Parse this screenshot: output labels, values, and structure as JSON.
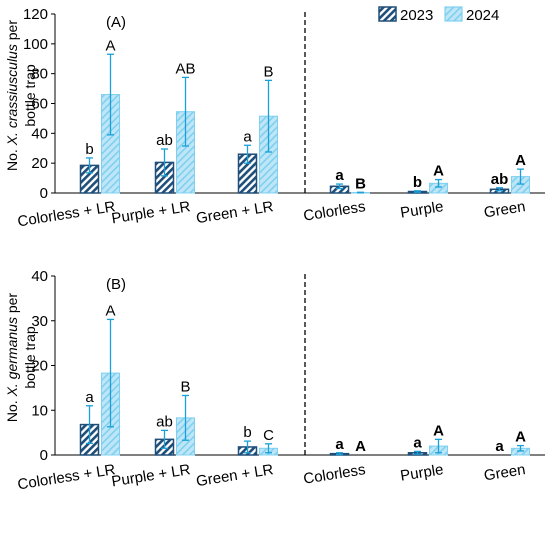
{
  "chart_data": [
    {
      "type": "bar",
      "panel_label": "(A)",
      "ylabel_prefix": "No. ",
      "ylabel_species": "X. crassiusculus",
      "ylabel_suffix": " per",
      "ylabel_line2": "bottle trap",
      "ylim": [
        0,
        120
      ],
      "yticks": [
        "0",
        "20",
        "40",
        "60",
        "80",
        "100",
        "120"
      ],
      "categories": [
        "Colorless + LR",
        "Purple + LR",
        "Green + LR",
        "Colorless",
        "Purple",
        "Green"
      ],
      "series": [
        {
          "name": "2023",
          "values": [
            18.5,
            20.5,
            26,
            4.5,
            1,
            2.5
          ],
          "errors": [
            5,
            9,
            6,
            1.5,
            0.5,
            1
          ]
        },
        {
          "name": "2024",
          "values": [
            66,
            54.5,
            51.5,
            0.3,
            6.5,
            11
          ],
          "errors": [
            27,
            23,
            24,
            0.2,
            2.5,
            5
          ]
        }
      ],
      "letters_2023": [
        "b",
        "ab",
        "a",
        "a",
        "b",
        "ab"
      ],
      "letters_2024": [
        "A",
        "AB",
        "B",
        "B",
        "A",
        "A"
      ],
      "bold_letters_from_index": 3
    },
    {
      "type": "bar",
      "panel_label": "(B)",
      "ylabel_prefix": "No. ",
      "ylabel_species": "X. germanus",
      "ylabel_suffix": " per",
      "ylabel_line2": "bottle trap",
      "ylim": [
        0,
        40
      ],
      "yticks": [
        "0",
        "10",
        "20",
        "30",
        "40"
      ],
      "categories": [
        "Colorless + LR",
        "Purple + LR",
        "Green + LR",
        "Colorless",
        "Purple",
        "Green"
      ],
      "series": [
        {
          "name": "2023",
          "values": [
            6.8,
            3.5,
            1.8,
            0.3,
            0.5,
            0
          ],
          "errors": [
            4.2,
            2,
            1.3,
            0.2,
            0.3,
            0
          ]
        },
        {
          "name": "2024",
          "values": [
            18.3,
            8.3,
            1.5,
            0,
            2,
            1.5
          ],
          "errors": [
            12,
            5,
            1,
            0,
            1.5,
            0.6
          ]
        }
      ],
      "letters_2023": [
        "a",
        "ab",
        "b",
        "a",
        "a",
        "a"
      ],
      "letters_2024": [
        "A",
        "B",
        "C",
        "A",
        "A",
        "A"
      ],
      "bold_letters_from_index": 3
    }
  ],
  "legend": [
    "2023",
    "2024"
  ],
  "colors": {
    "dark": "#1f4e79",
    "dark_stripe": "#1f4e79",
    "light": "#bfe6f7",
    "light_stripe": "#7fd0f0",
    "error_bar": "#1aa0d8",
    "axis": "#000000"
  }
}
